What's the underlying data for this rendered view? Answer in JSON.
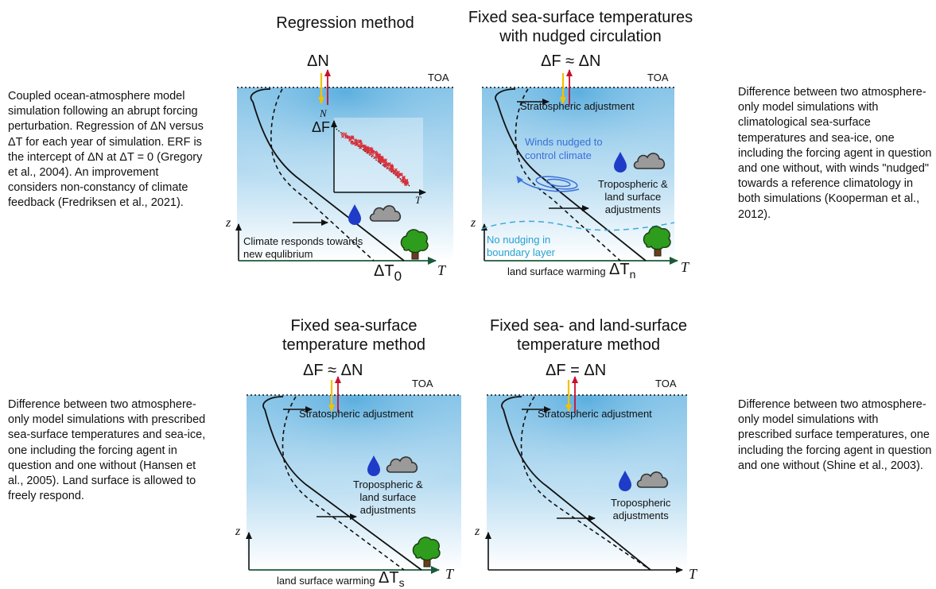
{
  "panels": {
    "regression": {
      "title": "Regression method",
      "equation": "ΔN",
      "toa": "TOA",
      "description": "Coupled ocean-atmosphere model simulation following an abrupt forcing perturbation. Regression of ΔN versus ΔT for each year of simulation. ERF is the intercept of ΔN at ΔT = 0 (Gregory et al., 2004). An improvement considers non-constancy of climate feedback (Fredriksen et al., 2021).",
      "inset_y": "N",
      "inset_x": "T",
      "inset_intercept": "ΔF",
      "note": "Climate responds towards new equlibrium",
      "z_axis": "z",
      "t_axis": "T",
      "delta": "ΔT",
      "delta_sub": "0"
    },
    "nudged": {
      "title_line1": "Fixed sea-surface temperatures",
      "title_line2": "with nudged circulation",
      "equation": "ΔF ≈ ΔN",
      "toa": "TOA",
      "description": "Difference between two atmosphere-only model simulations with climatological sea-surface temperatures and sea-ice, one including the forcing agent in question and one without, with winds \"nudged\" towards a reference climatology in both simulations (Kooperman et al., 2012).",
      "strat": "Stratospheric adjustment",
      "winds_line1": "Winds nudged to",
      "winds_line2": "control climate",
      "trop_line1": "Tropospheric &",
      "trop_line2": "land surface",
      "trop_line3": "adjustments",
      "no_nudge_line1": "No nudging in",
      "no_nudge_line2": "boundary layer",
      "land": "land surface warming",
      "delta": "ΔT",
      "delta_sub": "n",
      "z_axis": "z",
      "t_axis": "T"
    },
    "fixed_sst": {
      "title_line1": "Fixed sea-surface",
      "title_line2": "temperature method",
      "equation": "ΔF ≈ ΔN",
      "toa": "TOA",
      "description": "Difference between two atmosphere-only model simulations with prescribed sea-surface temperatures and sea-ice, one including the forcing agent in question and one without (Hansen et al., 2005). Land surface is allowed to freely respond.",
      "strat": "Stratospheric adjustment",
      "trop_line1": "Tropospheric &",
      "trop_line2": "land surface",
      "trop_line3": "adjustments",
      "land": "land surface warming",
      "delta": "ΔT",
      "delta_sub": "s",
      "z_axis": "z",
      "t_axis": "T"
    },
    "fixed_land": {
      "title_line1": "Fixed sea- and land-surface",
      "title_line2": "temperature method",
      "equation": "ΔF = ΔN",
      "toa": "TOA",
      "description": "Difference between two atmosphere-only model simulations with prescribed surface temperatures, one including the forcing agent in question and one without (Shine et al., 2003).",
      "strat": "Stratospheric adjustment",
      "trop_line1": "Tropospheric",
      "trop_line2": "adjustments",
      "z_axis": "z",
      "t_axis": "T"
    }
  },
  "colors": {
    "sky_top": "#6ab6e2",
    "sky_bottom": "#ffffff",
    "incoming_arrow": "#f2c100",
    "outgoing_arrow": "#c8102e",
    "scatter": "#d7303a",
    "winds": "#3a6fd8",
    "boundary": "#40a8d8",
    "droplet": "#1e3cc8",
    "cloud": "#9a9a9a",
    "tree": "#2e9c1c"
  }
}
